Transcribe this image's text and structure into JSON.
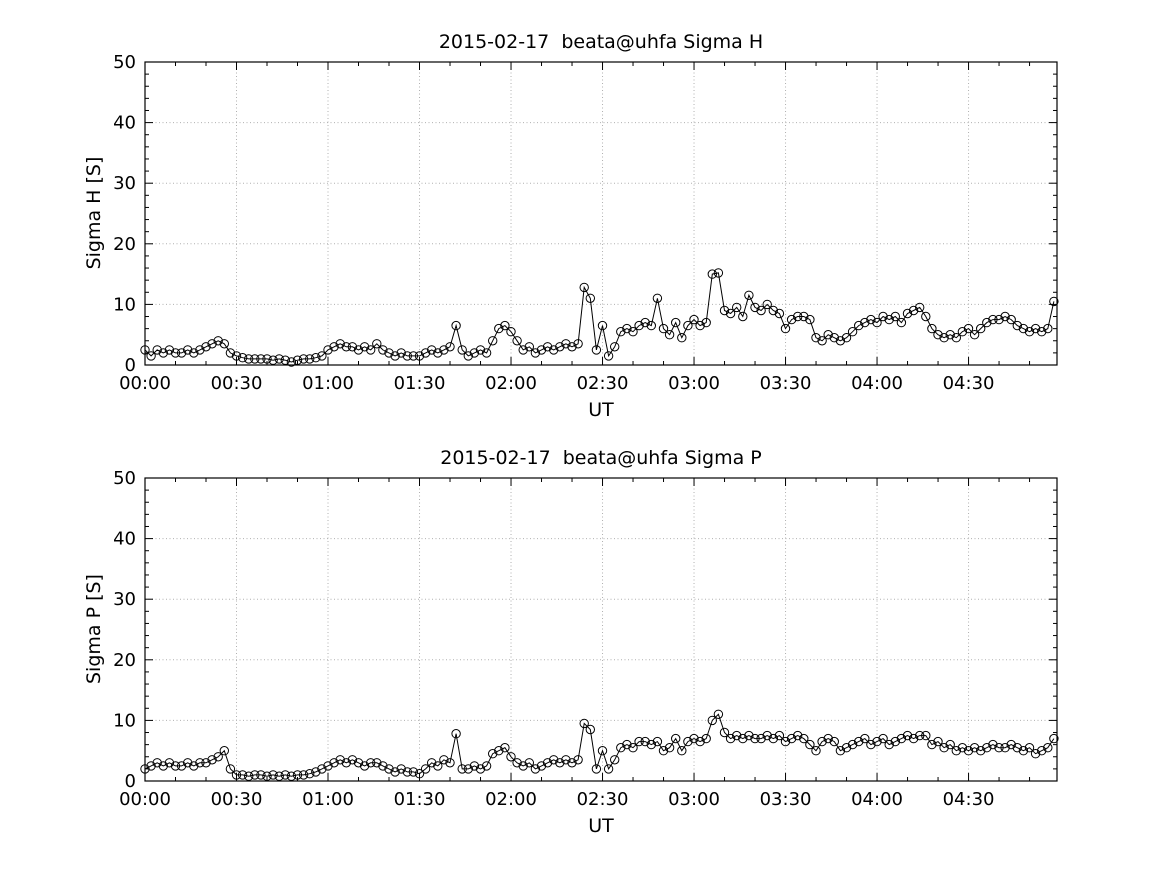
{
  "figure": {
    "background": "#ffffff",
    "line_color": "#000000",
    "grid_color": "#b0b0b0"
  },
  "chart_data": [
    {
      "type": "line",
      "title": "2015-02-17  beata@uhfa Sigma H",
      "xlabel": "UT",
      "ylabel": "Sigma H [S]",
      "ylim": [
        0,
        50
      ],
      "yticks": [
        0,
        10,
        20,
        30,
        40,
        50
      ],
      "y_minor_step": 2,
      "xlim_minutes": [
        0,
        299
      ],
      "xticks_minutes": [
        0,
        30,
        60,
        90,
        120,
        150,
        180,
        210,
        240,
        270
      ],
      "xtick_labels": [
        "00:00",
        "00:30",
        "01:00",
        "01:30",
        "02:00",
        "02:30",
        "03:00",
        "03:30",
        "04:00",
        "04:30"
      ],
      "x_minor_step_minutes": 10,
      "grid": true,
      "legend": "none",
      "marker": "open-circle",
      "line_color": "#000000",
      "x_start_minute": 0,
      "x_step_minutes": 2,
      "values": [
        2.5,
        1.5,
        2.5,
        2,
        2.5,
        2,
        2,
        2.5,
        2,
        2.5,
        3,
        3.5,
        4,
        3.5,
        2,
        1.5,
        1.2,
        1,
        1,
        1,
        1,
        0.8,
        1,
        0.8,
        0.5,
        0.8,
        1,
        1,
        1.2,
        1.5,
        2.5,
        3,
        3.5,
        3,
        3,
        2.5,
        3,
        2.5,
        3.5,
        2.5,
        2,
        1.5,
        2,
        1.5,
        1.5,
        1.5,
        2,
        2.5,
        2,
        2.5,
        3,
        6.5,
        2.5,
        1.5,
        2,
        2.5,
        2,
        4,
        6,
        6.5,
        5.5,
        4,
        2.5,
        3,
        2,
        2.5,
        3,
        2.5,
        3,
        3.5,
        3,
        3.5,
        12.8,
        11,
        2.5,
        6.5,
        1.5,
        3,
        5.5,
        6,
        5.5,
        6.5,
        7,
        6.5,
        11,
        6,
        5,
        7,
        4.5,
        6.5,
        7.5,
        6.5,
        7,
        15,
        15.2,
        9,
        8.5,
        9.5,
        8,
        11.5,
        9.5,
        9,
        10,
        9,
        8.5,
        6,
        7.5,
        8,
        8,
        7.5,
        4.5,
        4,
        5,
        4.5,
        4,
        4.5,
        5.5,
        6.5,
        7,
        7.5,
        7,
        8,
        7.5,
        8,
        7,
        8.5,
        9,
        9.5,
        8,
        6,
        5,
        4.5,
        5,
        4.5,
        5.5,
        6,
        5,
        6,
        7,
        7.5,
        7.5,
        8,
        7.5,
        6.5,
        6,
        5.5,
        6,
        5.5,
        6,
        10.5
      ]
    },
    {
      "type": "line",
      "title": "2015-02-17  beata@uhfa Sigma P",
      "xlabel": "UT",
      "ylabel": "Sigma P [S]",
      "ylim": [
        0,
        50
      ],
      "yticks": [
        0,
        10,
        20,
        30,
        40,
        50
      ],
      "y_minor_step": 2,
      "xlim_minutes": [
        0,
        299
      ],
      "xticks_minutes": [
        0,
        30,
        60,
        90,
        120,
        150,
        180,
        210,
        240,
        270
      ],
      "xtick_labels": [
        "00:00",
        "00:30",
        "01:00",
        "01:30",
        "02:00",
        "02:30",
        "03:00",
        "03:30",
        "04:00",
        "04:30"
      ],
      "x_minor_step_minutes": 10,
      "grid": true,
      "legend": "none",
      "marker": "open-circle",
      "line_color": "#000000",
      "x_start_minute": 0,
      "x_step_minutes": 2,
      "values": [
        2,
        2.5,
        3,
        2.5,
        3,
        2.5,
        2.5,
        3,
        2.5,
        3,
        3,
        3.5,
        4,
        5,
        2,
        1,
        1,
        0.8,
        1,
        1,
        0.8,
        1,
        0.8,
        1,
        0.8,
        1,
        1,
        1.2,
        1.5,
        2,
        2.5,
        3,
        3.5,
        3,
        3.5,
        3,
        2.5,
        3,
        3,
        2.5,
        2,
        1.5,
        2,
        1.5,
        1.5,
        1.2,
        2,
        3,
        2.5,
        3.5,
        3,
        7.8,
        2,
        2,
        2.5,
        2,
        2.5,
        4.5,
        5,
        5.5,
        4,
        3,
        2.5,
        3,
        2,
        2.5,
        3,
        3.5,
        3,
        3.5,
        3,
        3.5,
        9.5,
        8.5,
        2,
        5,
        2,
        3.5,
        5.5,
        6,
        5.5,
        6.5,
        6.5,
        6,
        6.5,
        5,
        5.5,
        7,
        5,
        6.5,
        7,
        6.5,
        7,
        10,
        11,
        8,
        7,
        7.5,
        7,
        7.5,
        7,
        7,
        7.5,
        7,
        7.5,
        6.5,
        7,
        7.5,
        7,
        6,
        5,
        6.5,
        7,
        6.5,
        5,
        5.5,
        6,
        6.5,
        7,
        6,
        6.5,
        7,
        6,
        6.5,
        7,
        7.5,
        7,
        7.5,
        7.5,
        6,
        6.5,
        5.5,
        6,
        5,
        5.5,
        5,
        5.5,
        5,
        5.5,
        6,
        5.5,
        5.5,
        6,
        5.5,
        5,
        5.5,
        4.5,
        5,
        5.5,
        7
      ]
    }
  ]
}
